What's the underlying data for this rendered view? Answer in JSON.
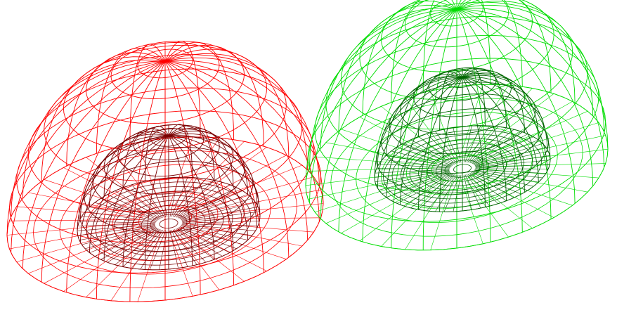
{
  "scene": {
    "background": "#ffffff",
    "style": "wireframe",
    "objects": [
      {
        "name": "red-outer-hemisphere",
        "color": "#ff0000"
      },
      {
        "name": "red-inner-hemisphere",
        "color": "#7a0000"
      },
      {
        "name": "green-outer-hemisphere",
        "color": "#00dd00"
      },
      {
        "name": "green-inner-hemisphere",
        "color": "#006600"
      }
    ]
  }
}
